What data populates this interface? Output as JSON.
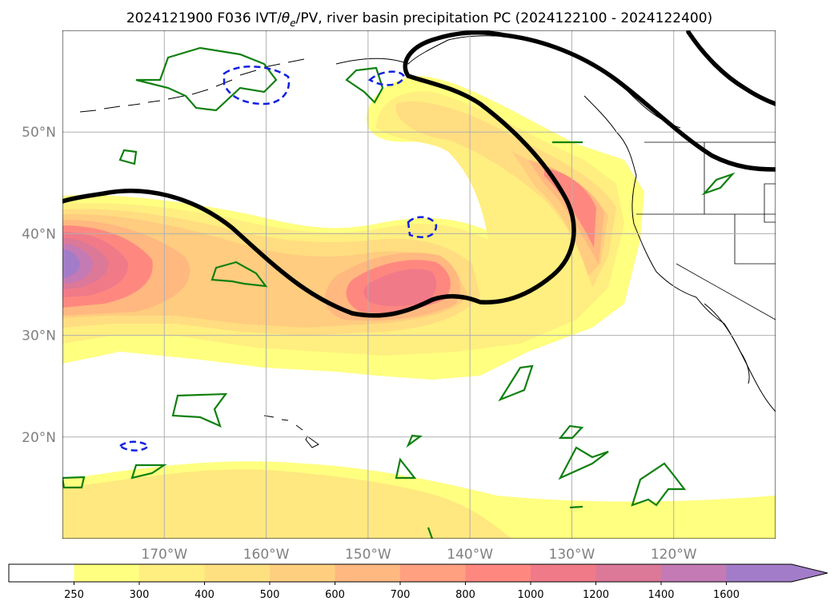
{
  "title": {
    "prefix": "2024121900 F036 IVT/",
    "theta": "θ",
    "theta_sub": "e",
    "suffix": "/PV, river basin precipitation PC (2024122100 - 2024122400)"
  },
  "map": {
    "lon_range": [
      -180,
      -110
    ],
    "lat_range": [
      10,
      60
    ],
    "lon_ticks": [
      {
        "value": -170,
        "label": "170°W"
      },
      {
        "value": -160,
        "label": "160°W"
      },
      {
        "value": -150,
        "label": "150°W"
      },
      {
        "value": -140,
        "label": "140°W"
      },
      {
        "value": -130,
        "label": "130°W"
      },
      {
        "value": -120,
        "label": "120°W"
      }
    ],
    "lat_ticks": [
      {
        "value": 20,
        "label": "20°N"
      },
      {
        "value": 30,
        "label": "30°N"
      },
      {
        "value": 40,
        "label": "40°N"
      },
      {
        "value": 50,
        "label": "50°N"
      }
    ],
    "grid": true
  },
  "colorbar": {
    "extend": "max",
    "bins": [
      {
        "label": "",
        "color": "#ffffff"
      },
      {
        "label": "250",
        "color": "#ffff80"
      },
      {
        "label": "300",
        "color": "#ffee80"
      },
      {
        "label": "400",
        "color": "#ffe080"
      },
      {
        "label": "500",
        "color": "#ffcf80"
      },
      {
        "label": "600",
        "color": "#ffb880"
      },
      {
        "label": "700",
        "color": "#ffa080"
      },
      {
        "label": "800",
        "color": "#fe8880"
      },
      {
        "label": "1000",
        "color": "#f07a88"
      },
      {
        "label": "1200",
        "color": "#dc7898"
      },
      {
        "label": "1400",
        "color": "#c47ab4"
      },
      {
        "label": "1600",
        "color": "#a27cc8"
      }
    ]
  },
  "layers": {
    "ivt_shading": "IVT",
    "pv_contour": "2-PVU dynamic tropopause",
    "theta_e_contour": "theta-e",
    "coastline": "coastlines and state borders"
  }
}
